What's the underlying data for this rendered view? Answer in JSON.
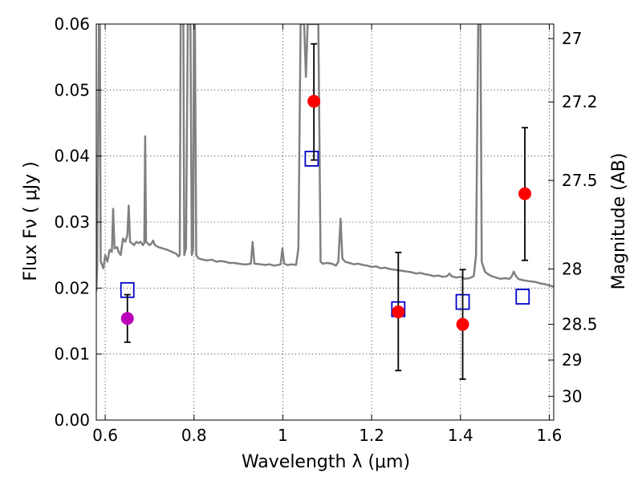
{
  "chart_data": {
    "type": "scatter",
    "xlabel": "Wavelength  λ (μm)",
    "ylabel": "Flux  Fν  ( μJy )",
    "ylabel_right": "Magnitude (AB)",
    "xlim": [
      0.58,
      1.61
    ],
    "ylim": [
      0.0,
      0.06
    ],
    "grid": true,
    "x_ticks": [
      0.6,
      0.8,
      1.0,
      1.2,
      1.4,
      1.6
    ],
    "x_tick_labels": [
      "0.6",
      "0.8",
      "1",
      "1.2",
      "1.4",
      "1.6"
    ],
    "y_ticks": [
      0.0,
      0.01,
      0.02,
      0.03,
      0.04,
      0.05,
      0.06
    ],
    "y_tick_labels": [
      "0.00",
      "0.01",
      "0.02",
      "0.03",
      "0.04",
      "0.05",
      "0.06"
    ],
    "right_ticks": [
      {
        "label": "27",
        "flux": 0.0578
      },
      {
        "label": "27.2",
        "flux": 0.0482
      },
      {
        "label": "27.5",
        "flux": 0.0363
      },
      {
        "label": "28",
        "flux": 0.0229
      },
      {
        "label": "28.5",
        "flux": 0.0145
      },
      {
        "label": "29",
        "flux": 0.0091
      },
      {
        "label": "30",
        "flux": 0.0036
      }
    ],
    "series": [
      {
        "kind": "spectrum",
        "color": "#808080",
        "points": [
          [
            0.58,
            0.0195
          ],
          [
            0.582,
            0.023
          ],
          [
            0.586,
            0.06
          ],
          [
            0.588,
            0.06
          ],
          [
            0.59,
            0.024
          ],
          [
            0.596,
            0.023
          ],
          [
            0.6,
            0.025
          ],
          [
            0.605,
            0.024
          ],
          [
            0.61,
            0.0258
          ],
          [
            0.615,
            0.0255
          ],
          [
            0.618,
            0.032
          ],
          [
            0.621,
            0.026
          ],
          [
            0.627,
            0.0262
          ],
          [
            0.63,
            0.0255
          ],
          [
            0.635,
            0.025
          ],
          [
            0.64,
            0.0275
          ],
          [
            0.645,
            0.027
          ],
          [
            0.65,
            0.028
          ],
          [
            0.653,
            0.0325
          ],
          [
            0.656,
            0.027
          ],
          [
            0.66,
            0.0268
          ],
          [
            0.665,
            0.0265
          ],
          [
            0.67,
            0.027
          ],
          [
            0.675,
            0.0268
          ],
          [
            0.68,
            0.027
          ],
          [
            0.685,
            0.0265
          ],
          [
            0.688,
            0.0268
          ],
          [
            0.69,
            0.043
          ],
          [
            0.692,
            0.027
          ],
          [
            0.7,
            0.0265
          ],
          [
            0.705,
            0.0268
          ],
          [
            0.708,
            0.0272
          ],
          [
            0.712,
            0.0265
          ],
          [
            0.72,
            0.0262
          ],
          [
            0.73,
            0.026
          ],
          [
            0.74,
            0.0258
          ],
          [
            0.75,
            0.0255
          ],
          [
            0.76,
            0.0252
          ],
          [
            0.765,
            0.0248
          ],
          [
            0.768,
            0.025
          ],
          [
            0.77,
            0.06
          ],
          [
            0.776,
            0.06
          ],
          [
            0.778,
            0.025
          ],
          [
            0.782,
            0.026
          ],
          [
            0.786,
            0.06
          ],
          [
            0.792,
            0.06
          ],
          [
            0.795,
            0.025
          ],
          [
            0.798,
            0.026
          ],
          [
            0.8,
            0.06
          ],
          [
            0.802,
            0.06
          ],
          [
            0.805,
            0.025
          ],
          [
            0.81,
            0.0245
          ],
          [
            0.82,
            0.0243
          ],
          [
            0.83,
            0.0242
          ],
          [
            0.84,
            0.0243
          ],
          [
            0.85,
            0.024
          ],
          [
            0.86,
            0.0241
          ],
          [
            0.87,
            0.024
          ],
          [
            0.88,
            0.0238
          ],
          [
            0.89,
            0.0238
          ],
          [
            0.9,
            0.0237
          ],
          [
            0.91,
            0.0236
          ],
          [
            0.92,
            0.0236
          ],
          [
            0.928,
            0.0237
          ],
          [
            0.932,
            0.027
          ],
          [
            0.936,
            0.0237
          ],
          [
            0.95,
            0.0236
          ],
          [
            0.96,
            0.0235
          ],
          [
            0.97,
            0.0236
          ],
          [
            0.98,
            0.0234
          ],
          [
            0.99,
            0.0235
          ],
          [
            0.995,
            0.0236
          ],
          [
            0.999,
            0.026
          ],
          [
            1.003,
            0.0237
          ],
          [
            1.01,
            0.0235
          ],
          [
            1.02,
            0.0236
          ],
          [
            1.03,
            0.0235
          ],
          [
            1.035,
            0.026
          ],
          [
            1.04,
            0.06
          ],
          [
            1.048,
            0.06
          ],
          [
            1.052,
            0.052
          ],
          [
            1.056,
            0.06
          ],
          [
            1.08,
            0.06
          ],
          [
            1.085,
            0.024
          ],
          [
            1.09,
            0.0237
          ],
          [
            1.1,
            0.0238
          ],
          [
            1.11,
            0.0237
          ],
          [
            1.12,
            0.0234
          ],
          [
            1.125,
            0.024
          ],
          [
            1.13,
            0.0305
          ],
          [
            1.134,
            0.0245
          ],
          [
            1.14,
            0.024
          ],
          [
            1.15,
            0.0238
          ],
          [
            1.16,
            0.0236
          ],
          [
            1.17,
            0.0237
          ],
          [
            1.18,
            0.0235
          ],
          [
            1.19,
            0.0234
          ],
          [
            1.2,
            0.0232
          ],
          [
            1.21,
            0.0233
          ],
          [
            1.22,
            0.023
          ],
          [
            1.23,
            0.0231
          ],
          [
            1.24,
            0.0229
          ],
          [
            1.25,
            0.0228
          ],
          [
            1.26,
            0.0227
          ],
          [
            1.27,
            0.0226
          ],
          [
            1.28,
            0.0225
          ],
          [
            1.29,
            0.0224
          ],
          [
            1.3,
            0.0222
          ],
          [
            1.31,
            0.0223
          ],
          [
            1.32,
            0.0221
          ],
          [
            1.33,
            0.022
          ],
          [
            1.34,
            0.0218
          ],
          [
            1.35,
            0.0219
          ],
          [
            1.36,
            0.0217
          ],
          [
            1.37,
            0.0218
          ],
          [
            1.375,
            0.0222
          ],
          [
            1.38,
            0.0218
          ],
          [
            1.39,
            0.0216
          ],
          [
            1.4,
            0.0217
          ],
          [
            1.41,
            0.0214
          ],
          [
            1.42,
            0.0215
          ],
          [
            1.43,
            0.0218
          ],
          [
            1.435,
            0.025
          ],
          [
            1.44,
            0.06
          ],
          [
            1.445,
            0.06
          ],
          [
            1.448,
            0.024
          ],
          [
            1.455,
            0.0225
          ],
          [
            1.46,
            0.0222
          ],
          [
            1.47,
            0.0218
          ],
          [
            1.48,
            0.0216
          ],
          [
            1.49,
            0.0214
          ],
          [
            1.5,
            0.0215
          ],
          [
            1.51,
            0.0214
          ],
          [
            1.515,
            0.0217
          ],
          [
            1.52,
            0.0225
          ],
          [
            1.525,
            0.0218
          ],
          [
            1.53,
            0.0214
          ],
          [
            1.54,
            0.0212
          ],
          [
            1.55,
            0.0211
          ],
          [
            1.56,
            0.021
          ],
          [
            1.57,
            0.0209
          ],
          [
            1.58,
            0.0207
          ],
          [
            1.59,
            0.0206
          ],
          [
            1.6,
            0.0204
          ],
          [
            1.61,
            0.0202
          ]
        ]
      },
      {
        "kind": "model_boxes",
        "color": "#0000cc",
        "points": [
          [
            0.65,
            0.0197
          ],
          [
            1.065,
            0.0396
          ],
          [
            1.26,
            0.0168
          ],
          [
            1.405,
            0.0179
          ],
          [
            1.54,
            0.0187
          ]
        ]
      },
      {
        "kind": "observed",
        "color": "#ff0000",
        "points": [
          {
            "x": 1.07,
            "y": 0.0483,
            "err_lo": 0.0394,
            "err_hi": 0.057
          },
          {
            "x": 1.26,
            "y": 0.0164,
            "err_lo": 0.0075,
            "err_hi": 0.0254
          },
          {
            "x": 1.405,
            "y": 0.0145,
            "err_lo": 0.0062,
            "err_hi": 0.0228
          },
          {
            "x": 1.545,
            "y": 0.0343,
            "err_lo": 0.0242,
            "err_hi": 0.0443
          }
        ]
      },
      {
        "kind": "observed_optical",
        "color": "#bb00bb",
        "points": [
          {
            "x": 0.65,
            "y": 0.0154,
            "err_lo": 0.0118,
            "err_hi": 0.019
          }
        ]
      }
    ]
  }
}
